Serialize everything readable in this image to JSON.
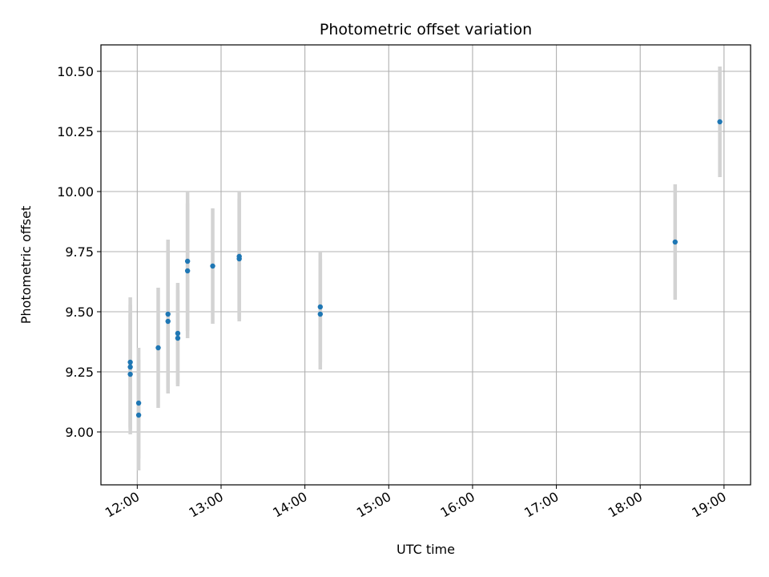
{
  "chart_data": {
    "type": "scatter",
    "title": "Photometric offset variation",
    "xlabel": "UTC time",
    "ylabel": "Photometric offset",
    "xlim": [
      "11:34",
      "19:19"
    ],
    "ylim": [
      8.78,
      10.61
    ],
    "x_ticks": [
      "12:00",
      "13:00",
      "14:00",
      "15:00",
      "16:00",
      "17:00",
      "18:00",
      "19:00"
    ],
    "y_ticks": [
      "9.00",
      "9.25",
      "9.50",
      "9.75",
      "10.00",
      "10.25",
      "10.50"
    ],
    "grid": true,
    "series": [
      {
        "marker_color": "#1f77b4",
        "errorbar_color": "#d3d3d3",
        "points": [
          {
            "x": "11:55",
            "y": 9.29,
            "err": 0.27
          },
          {
            "x": "11:55",
            "y": 9.27,
            "err": 0.26
          },
          {
            "x": "11:55",
            "y": 9.24,
            "err": 0.25
          },
          {
            "x": "12:01",
            "y": 9.12,
            "err": 0.23
          },
          {
            "x": "12:01",
            "y": 9.07,
            "err": 0.23
          },
          {
            "x": "12:15",
            "y": 9.35,
            "err": 0.25
          },
          {
            "x": "12:22",
            "y": 9.49,
            "err": 0.31
          },
          {
            "x": "12:22",
            "y": 9.46,
            "err": 0.3
          },
          {
            "x": "12:29",
            "y": 9.41,
            "err": 0.21
          },
          {
            "x": "12:29",
            "y": 9.39,
            "err": 0.2
          },
          {
            "x": "12:36",
            "y": 9.71,
            "err": 0.29
          },
          {
            "x": "12:36",
            "y": 9.67,
            "err": 0.28
          },
          {
            "x": "12:54",
            "y": 9.69,
            "err": 0.24
          },
          {
            "x": "13:13",
            "y": 9.73,
            "err": 0.27
          },
          {
            "x": "13:13",
            "y": 9.72,
            "err": 0.25
          },
          {
            "x": "14:11",
            "y": 9.52,
            "err": 0.23
          },
          {
            "x": "14:11",
            "y": 9.49,
            "err": 0.23
          },
          {
            "x": "18:25",
            "y": 9.79,
            "err": 0.24
          },
          {
            "x": "18:57",
            "y": 10.29,
            "err": 0.23
          }
        ]
      }
    ]
  }
}
